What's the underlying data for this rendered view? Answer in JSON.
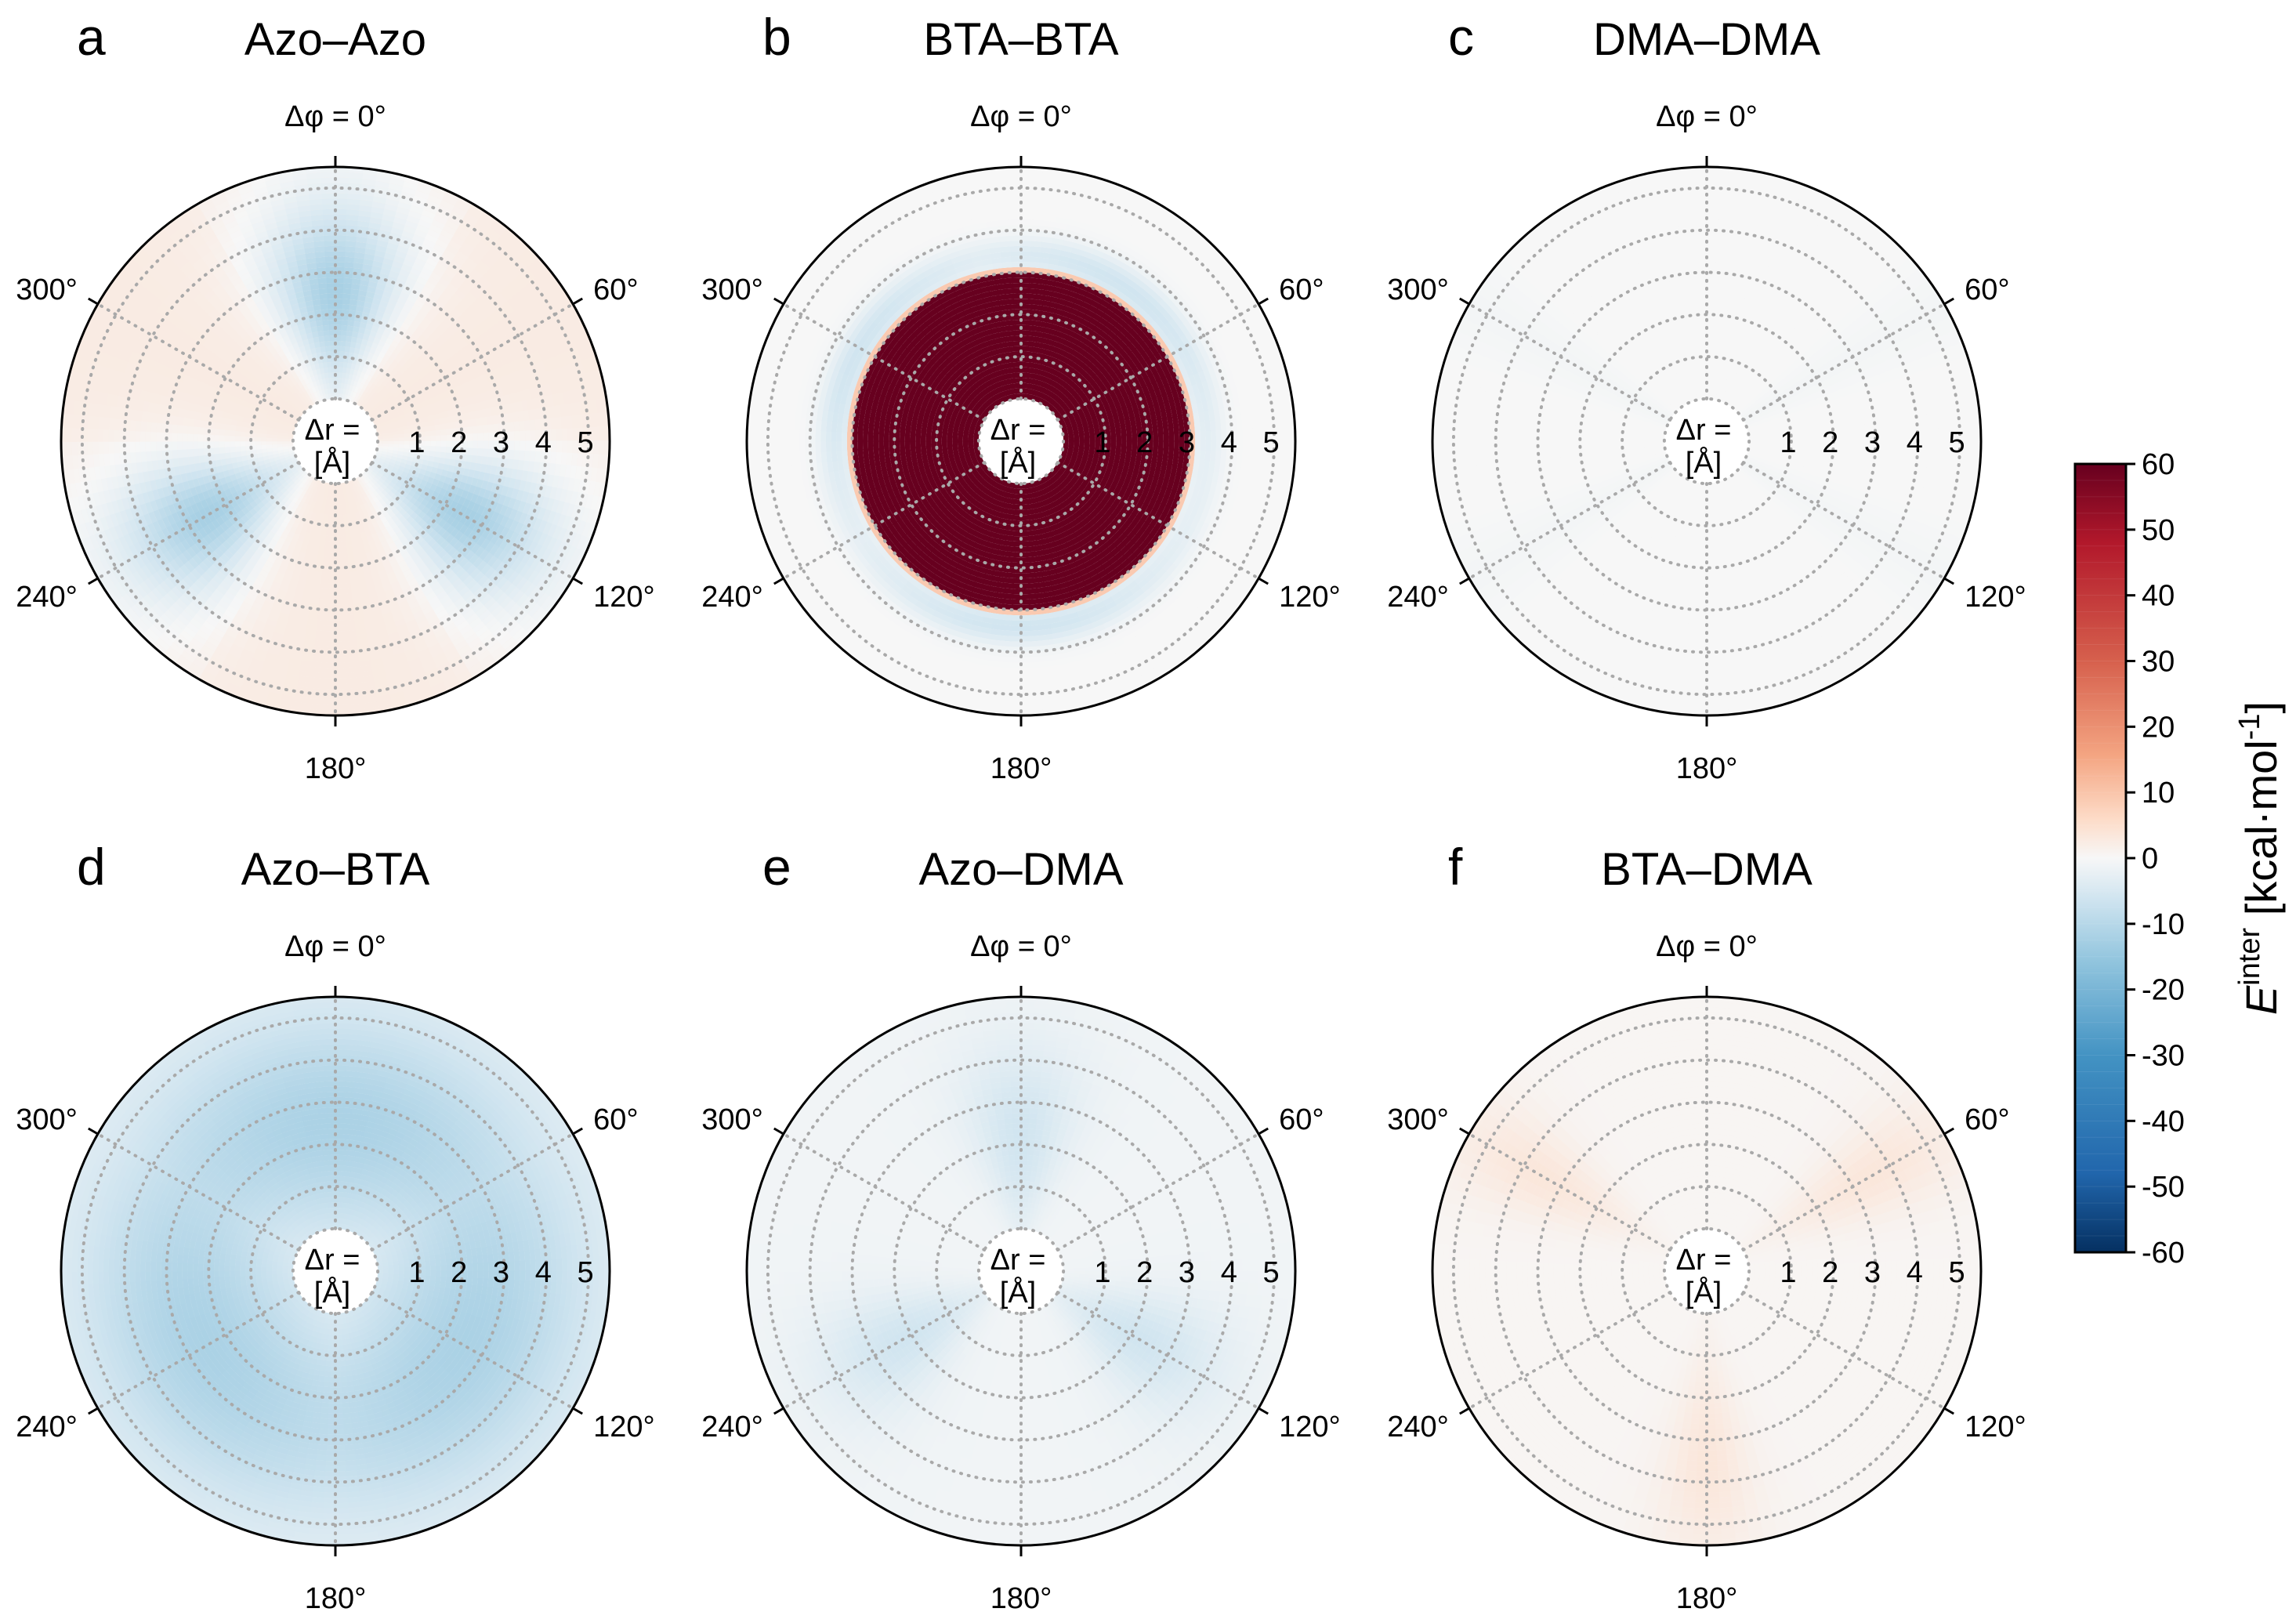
{
  "chart_data": {
    "type": "heatmap",
    "subtype": "polar-contour",
    "description_axes": {
      "angular_axis": "Δφ (degrees), 0° at top, clockwise",
      "radial_axis": "Δr [Å]"
    },
    "radial_ticks": [
      "1",
      "2",
      "3",
      "4",
      "5"
    ],
    "radial_range": [
      0,
      5.5
    ],
    "angular_ticks": [
      "Δφ = 0°",
      "60°",
      "120°",
      "180°",
      "240°",
      "300°"
    ],
    "radial_axis_label": {
      "line1": "Δr =",
      "line2": "[Å]"
    },
    "panels": [
      {
        "letter": "a",
        "title": "Azo–Azo",
        "pattern": "three-lobe",
        "lobe_angles_deg": [
          0,
          120,
          240
        ],
        "min_value": -12,
        "background_value": 2,
        "repulsive_core_radius": 0
      },
      {
        "letter": "b",
        "title": "BTA–BTA",
        "pattern": "repulsive-core",
        "repulsive_core_radius": 3.0,
        "core_value": 60,
        "ring_value": -6,
        "background_value": 0
      },
      {
        "letter": "c",
        "title": "DMA–DMA",
        "pattern": "near-zero",
        "min_value": -1,
        "background_value": 0,
        "repulsive_core_radius": 0
      },
      {
        "letter": "d",
        "title": "Azo–BTA",
        "pattern": "broad-attractive",
        "min_value": -9,
        "background_value": -4,
        "repulsive_core_radius": 0
      },
      {
        "letter": "e",
        "title": "Azo–DMA",
        "pattern": "three-lobe-weak",
        "lobe_angles_deg": [
          0,
          120,
          240
        ],
        "min_value": -5,
        "background_value": -1,
        "repulsive_core_radius": 0
      },
      {
        "letter": "f",
        "title": "BTA–DMA",
        "pattern": "weak-repulsive-sectors",
        "lobe_angles_deg": [
          60,
          180,
          300
        ],
        "min_value": 3,
        "background_value": 1,
        "repulsive_core_radius": 0
      }
    ],
    "colorbar": {
      "label_base": "E",
      "label_sup": "inter",
      "label_units_pre": " [kcal·mol",
      "label_units_sup": "-1",
      "label_units_post": "]",
      "range": [
        -60,
        60
      ],
      "ticks": [
        "60",
        "50",
        "40",
        "30",
        "20",
        "10",
        "0",
        "-10",
        "-20",
        "-30",
        "-40",
        "-50",
        "-60"
      ],
      "colormap": "RdBu_r"
    }
  }
}
